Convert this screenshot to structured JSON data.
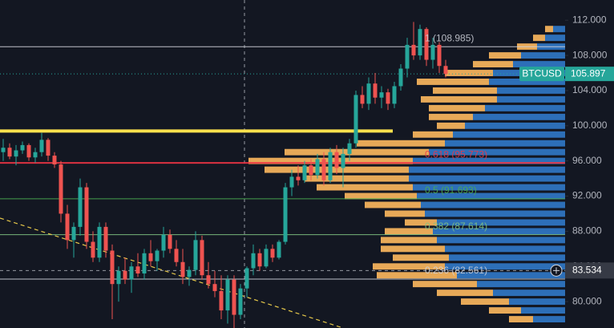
{
  "chart_data": {
    "type": "candlestick",
    "symbol": "BTCUSD",
    "up_color": "#26a69a",
    "down_color": "#ef5350",
    "open": [
      97,
      97.5,
      96.5,
      97.2,
      97.8,
      96.4,
      97,
      98.4,
      96.6,
      95.6,
      90,
      87,
      88.5,
      93,
      86.8,
      85,
      88.5,
      85.8,
      82,
      83.5,
      82.5,
      84,
      83.2,
      85.5,
      84.6,
      85.8,
      87.6,
      86,
      84.5,
      82.8,
      83.6,
      87,
      83,
      82,
      81.2,
      79,
      82.5,
      78.5,
      81.5,
      83.8,
      85.5,
      84,
      86,
      85,
      86.8,
      93,
      94.2,
      93.8,
      95.5,
      94.4,
      96.2,
      93.8,
      97,
      95.2,
      96.8,
      98,
      103.5,
      102.5,
      104.8,
      103.2,
      103.8,
      102.5,
      104.5,
      106.5,
      109.2,
      108,
      111,
      107.5,
      109.2,
      106.8
    ],
    "high": [
      98.5,
      98,
      97.8,
      98.2,
      98,
      97.5,
      99.2,
      98.6,
      97,
      96,
      91,
      89,
      94,
      93.5,
      88,
      89,
      89,
      86.5,
      84,
      85,
      84.5,
      85.5,
      86,
      87,
      86,
      88.5,
      88.2,
      87,
      86,
      84,
      88,
      87.5,
      84.5,
      83.5,
      83,
      83,
      83,
      82,
      84,
      86.5,
      86,
      86.5,
      86.5,
      87,
      93.5,
      95,
      95.5,
      96,
      96.2,
      96.8,
      97,
      97.5,
      97.8,
      97.5,
      98.5,
      104,
      104.5,
      105.5,
      106,
      104.5,
      104.2,
      105,
      107,
      110,
      111.8,
      111.5,
      111.2,
      110,
      109.5,
      107.5
    ],
    "low": [
      96,
      96.2,
      95.5,
      96.8,
      96,
      95.8,
      96.5,
      96,
      95.2,
      89,
      86,
      85,
      87.5,
      86,
      84.5,
      84.5,
      85,
      78,
      80,
      82,
      81,
      82.8,
      82.5,
      84,
      83.5,
      85,
      85.5,
      84,
      82,
      81.8,
      83,
      82.5,
      81.5,
      80.5,
      78,
      77.5,
      77,
      78,
      80.5,
      83,
      83.5,
      83.8,
      84.5,
      84.8,
      86.5,
      92,
      93.2,
      93.5,
      93.8,
      94,
      93.2,
      93.5,
      94.5,
      93,
      96,
      97.5,
      102,
      101.8,
      102.5,
      102,
      101.8,
      102,
      104,
      105.5,
      107.5,
      107.5,
      106.8,
      106.5,
      106,
      105.5
    ],
    "close": [
      97.5,
      96.5,
      97.2,
      97.8,
      96.4,
      97,
      98.4,
      96.6,
      95.6,
      90,
      87,
      88.5,
      93,
      86.8,
      85,
      88.5,
      85.8,
      82,
      83.5,
      82.5,
      84,
      83.2,
      85.5,
      84.6,
      85.8,
      87.6,
      86,
      84.5,
      82.8,
      83.6,
      87,
      83,
      82,
      81.2,
      79,
      82.5,
      78.5,
      81.5,
      83.8,
      85.5,
      84,
      86,
      85,
      86.8,
      93,
      94.2,
      93.8,
      95.5,
      94.4,
      96.2,
      93.8,
      97,
      95.2,
      96.8,
      98,
      103.5,
      102.5,
      104.8,
      103.2,
      103.8,
      102.5,
      104.5,
      106.5,
      109.2,
      108,
      111,
      107.5,
      109.2,
      106.8,
      105.897
    ],
    "ylim": [
      77,
      114.3
    ],
    "yticks": [
      {
        "value": 112,
        "label": "112.000"
      },
      {
        "value": 108,
        "label": "108.000"
      },
      {
        "value": 104,
        "label": "104.000"
      },
      {
        "value": 100,
        "label": "100.000"
      },
      {
        "value": 96,
        "label": "96.000"
      },
      {
        "value": 92,
        "label": "92.000"
      },
      {
        "value": 88,
        "label": "88.000"
      },
      {
        "value": 84,
        "label": "84.000"
      },
      {
        "value": 80,
        "label": "80.000"
      }
    ],
    "last_price": {
      "value": 105.897,
      "label": "105.897"
    },
    "crosshair_price": {
      "value": 83.534,
      "label": "83.534"
    },
    "fib_levels": [
      {
        "value": 108.985,
        "label": "1 (108.985)",
        "color": "#d1d4dc"
      },
      {
        "value": 95.773,
        "label": "0.618 (95.773)",
        "color": "#f23645"
      },
      {
        "value": 91.693,
        "label": "0.5 (91.693)",
        "color": "#4caf50"
      },
      {
        "value": 87.614,
        "label": "0.382 (87.614)",
        "color": "#81c784"
      },
      {
        "value": 82.561,
        "label": "0.236 (82.561)",
        "color": "#d1d4dc"
      }
    ],
    "support_line": {
      "value": 99.4,
      "color": "#ffe14d"
    },
    "trendline": {
      "x": [
        0,
        53
      ],
      "values": [
        89.5,
        77
      ],
      "color": "#e6c84a"
    },
    "volume_profile": {
      "prices": [
        111,
        110,
        109,
        108,
        107,
        106,
        105,
        104,
        103,
        102,
        101,
        100,
        99,
        98,
        97,
        96,
        95,
        94,
        93,
        92,
        91,
        90,
        89,
        88,
        87,
        86,
        85,
        84,
        83,
        82,
        81,
        80,
        79,
        78
      ],
      "up_volume": [
        15,
        25,
        35,
        55,
        65,
        90,
        95,
        85,
        85,
        100,
        115,
        125,
        140,
        150,
        170,
        190,
        195,
        195,
        190,
        185,
        180,
        175,
        160,
        165,
        160,
        150,
        145,
        150,
        135,
        110,
        90,
        70,
        55,
        40
      ],
      "down_volume": [
        10,
        15,
        25,
        40,
        50,
        60,
        90,
        80,
        95,
        70,
        55,
        35,
        50,
        110,
        180,
        205,
        180,
        130,
        120,
        90,
        70,
        50,
        40,
        60,
        70,
        80,
        70,
        90,
        100,
        80,
        70,
        60,
        40,
        30
      ],
      "up_color": "#3179c9",
      "down_color": "#f2b15c"
    }
  }
}
